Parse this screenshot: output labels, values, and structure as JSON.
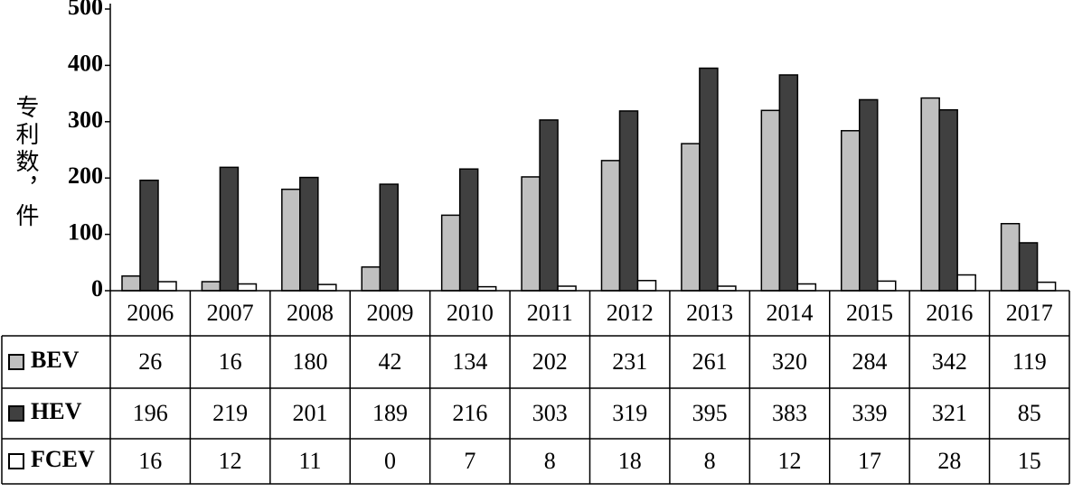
{
  "chart_data": {
    "type": "bar",
    "y_label": "专利数，件",
    "categories": [
      "2006",
      "2007",
      "2008",
      "2009",
      "2010",
      "2011",
      "2012",
      "2013",
      "2014",
      "2015",
      "2016",
      "2017"
    ],
    "series": [
      {
        "name": "BEV",
        "color": "#c0c0c0",
        "values": [
          26,
          16,
          180,
          42,
          134,
          202,
          231,
          261,
          320,
          284,
          342,
          119
        ]
      },
      {
        "name": "HEV",
        "color": "#404040",
        "values": [
          196,
          219,
          201,
          189,
          216,
          303,
          319,
          395,
          383,
          339,
          321,
          85
        ]
      },
      {
        "name": "FCEV",
        "color": "#ffffff",
        "values": [
          16,
          12,
          11,
          0,
          7,
          8,
          18,
          8,
          12,
          17,
          28,
          15
        ]
      }
    ],
    "ylim": [
      0,
      500
    ],
    "yticks": [
      0,
      100,
      200,
      300,
      400,
      500
    ],
    "grid": false
  }
}
